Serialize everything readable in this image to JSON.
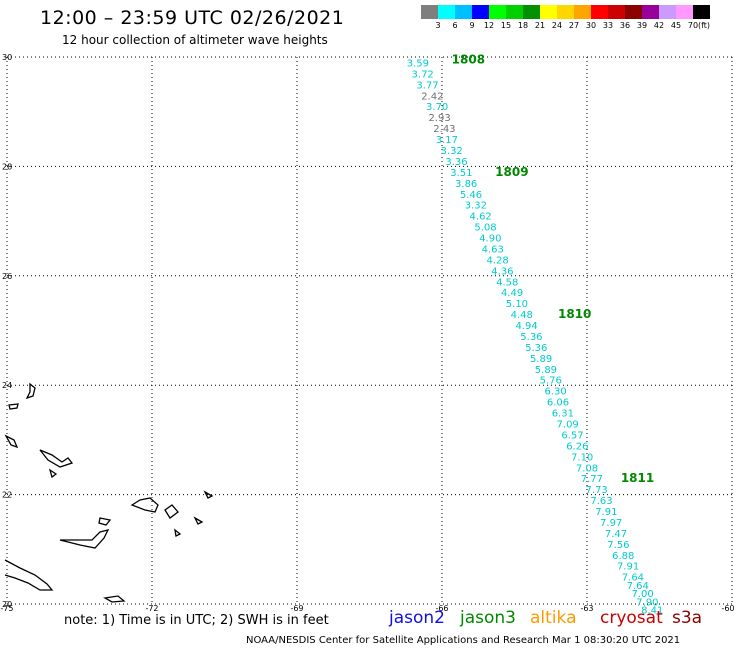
{
  "title": "12:00 – 23:59 UTC 02/26/2021",
  "subtitle": "12 hour collection of altimeter wave heights",
  "scale": {
    "unit": "(ft)",
    "bins": [
      {
        "label": "3",
        "color": "#7f7f7f"
      },
      {
        "label": "6",
        "color": "#00ffff"
      },
      {
        "label": "9",
        "color": "#00bfff"
      },
      {
        "label": "12",
        "color": "#0000ff"
      },
      {
        "label": "15",
        "color": "#00ff00"
      },
      {
        "label": "18",
        "color": "#00d000"
      },
      {
        "label": "21",
        "color": "#009000"
      },
      {
        "label": "24",
        "color": "#ffff00"
      },
      {
        "label": "27",
        "color": "#ffd700"
      },
      {
        "label": "30",
        "color": "#ffa500"
      },
      {
        "label": "33",
        "color": "#ff0000"
      },
      {
        "label": "36",
        "color": "#cc0000"
      },
      {
        "label": "39",
        "color": "#8b0000"
      },
      {
        "label": "42",
        "color": "#990099"
      },
      {
        "label": "45",
        "color": "#cc99ff"
      },
      {
        "label": "70",
        "color": "#ff99ff"
      },
      {
        "label": "",
        "color": "#000000"
      }
    ]
  },
  "axes": {
    "lon_ticks": [
      "-75",
      "-72",
      "-69",
      "-66",
      "-63",
      "-60"
    ],
    "lat_ticks": [
      "30",
      "28",
      "26",
      "24",
      "22",
      "20"
    ],
    "lon_range": [
      -75,
      -60
    ],
    "lat_range": [
      20,
      30
    ]
  },
  "chart_data": {
    "type": "scatter",
    "units": "ft",
    "points": [
      {
        "lon": -66.5,
        "lat": 29.9,
        "value": "3.59",
        "color": "#00cccc"
      },
      {
        "lon": -66.4,
        "lat": 29.7,
        "value": "3.72",
        "color": "#00cccc"
      },
      {
        "lon": -66.3,
        "lat": 29.5,
        "value": "3.77",
        "color": "#00cccc"
      },
      {
        "lon": -66.2,
        "lat": 29.3,
        "value": "2.42",
        "color": "#707070"
      },
      {
        "lon": -66.1,
        "lat": 29.1,
        "value": "3.70",
        "color": "#00cccc"
      },
      {
        "lon": -66.05,
        "lat": 28.9,
        "value": "2.93",
        "color": "#707070"
      },
      {
        "lon": -65.95,
        "lat": 28.7,
        "value": "2.43",
        "color": "#707070"
      },
      {
        "lon": -65.9,
        "lat": 28.5,
        "value": "3.17",
        "color": "#00cccc"
      },
      {
        "lon": -65.8,
        "lat": 28.3,
        "value": "3.32",
        "color": "#00cccc"
      },
      {
        "lon": -65.7,
        "lat": 28.1,
        "value": "3.36",
        "color": "#00cccc"
      },
      {
        "lon": -65.6,
        "lat": 27.9,
        "value": "3.51",
        "color": "#00cccc"
      },
      {
        "lon": -65.5,
        "lat": 27.7,
        "value": "3.86",
        "color": "#00cccc"
      },
      {
        "lon": -65.4,
        "lat": 27.5,
        "value": "5.46",
        "color": "#00cccc"
      },
      {
        "lon": -65.3,
        "lat": 27.3,
        "value": "3.32",
        "color": "#00cccc"
      },
      {
        "lon": -65.2,
        "lat": 27.1,
        "value": "4.62",
        "color": "#00cccc"
      },
      {
        "lon": -65.1,
        "lat": 26.9,
        "value": "5.08",
        "color": "#00cccc"
      },
      {
        "lon": -65.0,
        "lat": 26.7,
        "value": "4.90",
        "color": "#00cccc"
      },
      {
        "lon": -64.95,
        "lat": 26.5,
        "value": "4.63",
        "color": "#00cccc"
      },
      {
        "lon": -64.85,
        "lat": 26.3,
        "value": "4.28",
        "color": "#00cccc"
      },
      {
        "lon": -64.75,
        "lat": 26.1,
        "value": "4.36",
        "color": "#00cccc"
      },
      {
        "lon": -64.65,
        "lat": 25.9,
        "value": "4.58",
        "color": "#00cccc"
      },
      {
        "lon": -64.55,
        "lat": 25.7,
        "value": "4.49",
        "color": "#00cccc"
      },
      {
        "lon": -64.45,
        "lat": 25.5,
        "value": "5.10",
        "color": "#00cccc"
      },
      {
        "lon": -64.35,
        "lat": 25.3,
        "value": "4.48",
        "color": "#00cccc"
      },
      {
        "lon": -64.25,
        "lat": 25.1,
        "value": "4.94",
        "color": "#00cccc"
      },
      {
        "lon": -64.15,
        "lat": 24.9,
        "value": "5.36",
        "color": "#00cccc"
      },
      {
        "lon": -64.05,
        "lat": 24.7,
        "value": "5.36",
        "color": "#00cccc"
      },
      {
        "lon": -63.95,
        "lat": 24.5,
        "value": "5.89",
        "color": "#00cccc"
      },
      {
        "lon": -63.85,
        "lat": 24.3,
        "value": "5.89",
        "color": "#00cccc"
      },
      {
        "lon": -63.75,
        "lat": 24.1,
        "value": "5.76",
        "color": "#00cccc"
      },
      {
        "lon": -63.65,
        "lat": 23.9,
        "value": "6.30",
        "color": "#00cccc"
      },
      {
        "lon": -63.6,
        "lat": 23.7,
        "value": "6.06",
        "color": "#00cccc"
      },
      {
        "lon": -63.5,
        "lat": 23.5,
        "value": "6.31",
        "color": "#00cccc"
      },
      {
        "lon": -63.4,
        "lat": 23.3,
        "value": "7.09",
        "color": "#00cccc"
      },
      {
        "lon": -63.3,
        "lat": 23.1,
        "value": "6.57",
        "color": "#00cccc"
      },
      {
        "lon": -63.2,
        "lat": 22.9,
        "value": "6.26",
        "color": "#00cccc"
      },
      {
        "lon": -63.1,
        "lat": 22.7,
        "value": "7.10",
        "color": "#00cccc"
      },
      {
        "lon": -63.0,
        "lat": 22.5,
        "value": "7.08",
        "color": "#00cccc"
      },
      {
        "lon": -62.9,
        "lat": 22.3,
        "value": "7.77",
        "color": "#00cccc"
      },
      {
        "lon": -62.8,
        "lat": 22.1,
        "value": "7.73",
        "color": "#00cccc"
      },
      {
        "lon": -62.7,
        "lat": 21.9,
        "value": "7.63",
        "color": "#00cccc"
      },
      {
        "lon": -62.6,
        "lat": 21.7,
        "value": "7.91",
        "color": "#00cccc"
      },
      {
        "lon": -62.5,
        "lat": 21.5,
        "value": "7.97",
        "color": "#00cccc"
      },
      {
        "lon": -62.4,
        "lat": 21.3,
        "value": "7.47",
        "color": "#00cccc"
      },
      {
        "lon": -62.35,
        "lat": 21.1,
        "value": "7.56",
        "color": "#00cccc"
      },
      {
        "lon": -62.25,
        "lat": 20.9,
        "value": "6.88",
        "color": "#00cccc"
      },
      {
        "lon": -62.15,
        "lat": 20.7,
        "value": "7.91",
        "color": "#00cccc"
      },
      {
        "lon": -62.05,
        "lat": 20.5,
        "value": "7.64",
        "color": "#00cccc"
      },
      {
        "lon": -61.95,
        "lat": 20.35,
        "value": "7.64",
        "color": "#00cccc"
      },
      {
        "lon": -61.85,
        "lat": 20.2,
        "value": "7.00",
        "color": "#00cccc"
      },
      {
        "lon": -61.75,
        "lat": 20.05,
        "value": "7.90",
        "color": "#00cccc"
      },
      {
        "lon": -61.65,
        "lat": 19.9,
        "value": "8.41",
        "color": "#00cccc"
      }
    ],
    "pass_labels": [
      {
        "label": "1808",
        "lon": -65.8,
        "lat": 29.95
      },
      {
        "label": "1809",
        "lon": -64.9,
        "lat": 27.9
      },
      {
        "label": "1810",
        "lon": -63.6,
        "lat": 25.3
      },
      {
        "label": "1811",
        "lon": -62.3,
        "lat": 22.3
      }
    ]
  },
  "note": "note:  1) Time is in UTC;  2) SWH is in feet",
  "satellites": [
    {
      "name": "jason2",
      "color": "#1010e0"
    },
    {
      "name": "jason3",
      "color": "#008800"
    },
    {
      "name": "altika",
      "color": "#ff9900"
    },
    {
      "name": "cryosat",
      "color": "#cc0000"
    },
    {
      "name": "s3a",
      "color": "#880000"
    }
  ],
  "footer": "NOAA/NESDIS Center for Satellite Applications and Research   Mar  1 08:30:20 UTC 2021"
}
